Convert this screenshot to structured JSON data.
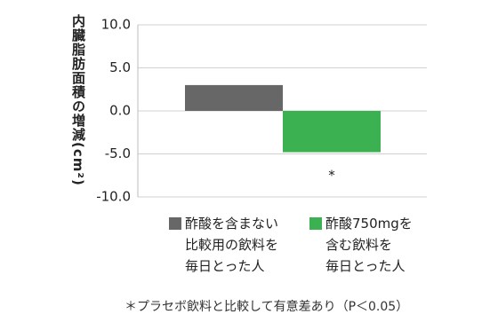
{
  "chart_data": {
    "type": "bar",
    "ylabel": "内臓脂肪面積の増減(cm²)",
    "categories": [
      "酢酸を含まない\n比較用の飲料を\n毎日とった人",
      "酢酸750mgを\n含む飲料を\n毎日とった人"
    ],
    "values": [
      3.0,
      -4.8
    ],
    "colors": [
      "#676767",
      "#3bb152"
    ],
    "ylim": [
      -10,
      10
    ],
    "yticks": [
      {
        "value": 10,
        "label": "10.0"
      },
      {
        "value": 5,
        "label": "5.0"
      },
      {
        "value": 0,
        "label": "0.0"
      },
      {
        "value": -5,
        "label": "-5.0"
      },
      {
        "value": -10,
        "label": "-10.0"
      }
    ],
    "grid": true,
    "annotation": "*",
    "footnote": "＊プラセボ飲料と比較して有意差あり（P＜0.05）"
  }
}
